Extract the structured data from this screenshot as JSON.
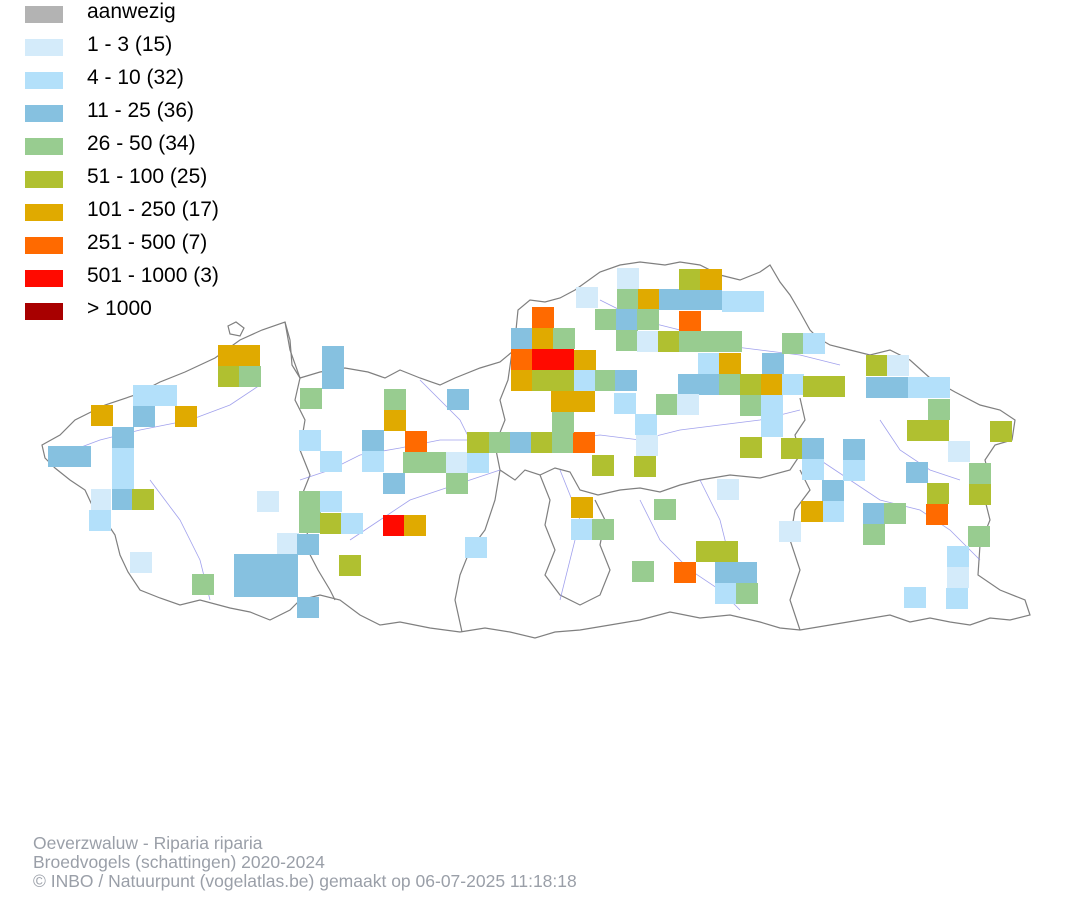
{
  "legend": [
    {
      "label": "aanwezig",
      "color": "#b3b3b3"
    },
    {
      "label": "1 - 3 (15)",
      "color": "#d4ebfa"
    },
    {
      "label": "4 - 10 (32)",
      "color": "#b3e0fa"
    },
    {
      "label": "11 - 25 (36)",
      "color": "#86c1e0"
    },
    {
      "label": "26 - 50 (34)",
      "color": "#98cc90"
    },
    {
      "label": "51 - 100 (25)",
      "color": "#b0c030"
    },
    {
      "label": "101 - 250 (17)",
      "color": "#e0aa00"
    },
    {
      "label": "251 - 500 (7)",
      "color": "#ff6a00"
    },
    {
      "label": "501 - 1000 (3)",
      "color": "#ff0a00"
    },
    {
      "label": "> 1000",
      "color": "#a80000"
    }
  ],
  "footer": {
    "species": "Oeverzwaluw - Riparia riparia",
    "subtitle": "Broedvogels (schattingen) 2020-2024",
    "credit": "© INBO / Natuurpunt (vogelatlas.be) gemaakt op 06-07-2025 11:18:18"
  }
}
